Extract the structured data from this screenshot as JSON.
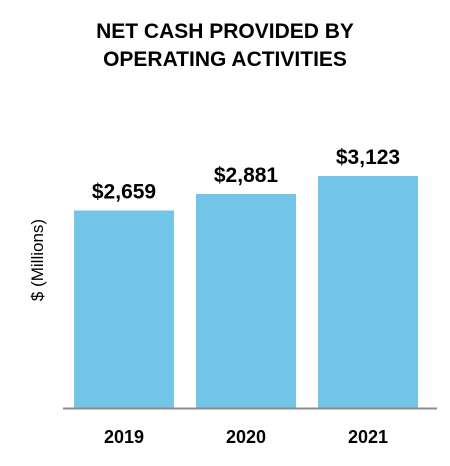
{
  "chart_data": {
    "type": "bar",
    "title_lines": [
      "NET CASH PROVIDED BY",
      "OPERATING ACTIVITIES"
    ],
    "ylabel": "$ (Millions)",
    "categories": [
      "2019",
      "2020",
      "2021"
    ],
    "values": [
      2659,
      2881,
      3123
    ],
    "data_labels": [
      "$2,659",
      "$2,881",
      "$3,123"
    ],
    "ylim": [
      0,
      3123
    ],
    "grid": false,
    "legend": "none",
    "bar_color": "#73C5E8",
    "axis_color": "#8C8C8C"
  }
}
